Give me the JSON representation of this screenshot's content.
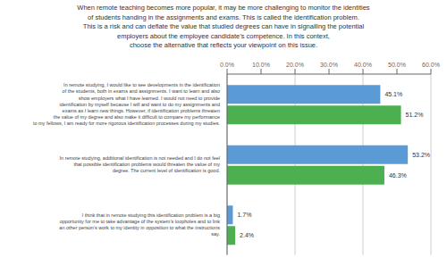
{
  "chart_data": {
    "type": "bar",
    "orientation": "horizontal",
    "title": "When remote teaching becomes more popular, it may be more challenging to monitor the identities\nof students handing in the assignments and exams. This is called the identification problem.\nThis is a risk and can deflate the value that studied degrees can have in signalling the potential\nemployers about the employee candidate’s competence. In this context,\nchoose the alternative that reflects your viewpoint on this issue.",
    "categories": [
      "In remote studying, I would like to see developments in the identification\nof the students, both in exams and assignments. I want to learn and also\nshow employers what I have learned. I would not need to provide\nidentification by myself because I will and want to do my assignments and\nexams as I learn new things. However, if identification problems threaten\nthe value of my degree and also make it difficult to compare my performance\nto my fellows, I am ready for more rigorous identification processes during my studies.",
      "In remote studying, additional identification is not needed and I do not feel\nthat possible identification problems would threaten the value of my\ndegree. The current level of identification is good.",
      "I think that in remote studying this identification problem is a big\nopportunity for me to take advantage of the system’s loopholes and to link\nan other person’s work to my identity in opposition to what the instructions\nsay."
    ],
    "series": [
      {
        "color": "#5B9BD5",
        "values": [
          45.1,
          53.2,
          1.7
        ],
        "value_labels": [
          "45.1%",
          "53.2%",
          "1.7%"
        ]
      },
      {
        "color": "#4CAF50",
        "values": [
          51.2,
          46.3,
          2.4
        ],
        "value_labels": [
          "51.2%",
          "46.3%",
          "2.4%"
        ]
      }
    ],
    "xlim": [
      0,
      60
    ],
    "xticks": [
      {
        "value": 0,
        "label": "0.0%"
      },
      {
        "value": 10,
        "label": "10.0%"
      },
      {
        "value": 20,
        "label": "20.0%"
      },
      {
        "value": 30,
        "label": "30.0%"
      },
      {
        "value": 40,
        "label": "40.0%"
      },
      {
        "value": 50,
        "label": "50.0%"
      },
      {
        "value": 60,
        "label": "60.0%"
      }
    ],
    "grid": true,
    "data_labels": true
  }
}
